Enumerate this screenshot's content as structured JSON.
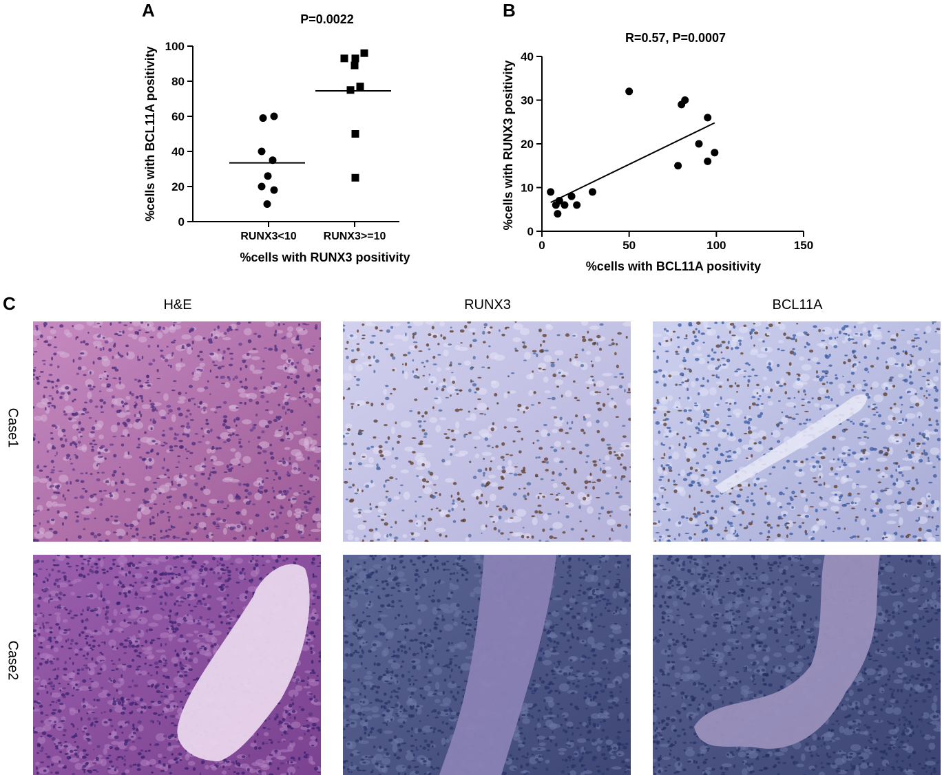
{
  "panels": {
    "a": "A",
    "b": "B",
    "c": "C"
  },
  "chart_data": [
    {
      "type": "scatter",
      "title": "P=0.0022",
      "xlabel": "%cells with RUNX3 positivity",
      "ylabel": "%cells with BCL11A positivity",
      "categories": [
        "RUNX3<10",
        "RUNX3>=10"
      ],
      "ylim": [
        0,
        100
      ],
      "yticks": [
        0,
        20,
        40,
        60,
        80,
        100
      ],
      "series": [
        {
          "category": "RUNX3<10",
          "marker": "circle",
          "values": [
            59,
            60,
            40,
            35,
            26,
            20,
            18,
            10
          ],
          "mean": 33.5
        },
        {
          "category": "RUNX3>=10",
          "marker": "square",
          "values": [
            96,
            93,
            93,
            89,
            77,
            75,
            50,
            25
          ],
          "mean": 74.5
        }
      ]
    },
    {
      "type": "scatter",
      "title": "R=0.57, P=0.0007",
      "xlabel": "%cells with BCL11A positivity",
      "ylabel": "%cells with RUNX3 positivity",
      "xlim": [
        0,
        150
      ],
      "ylim": [
        0,
        40
      ],
      "xticks": [
        0,
        50,
        100,
        150
      ],
      "yticks": [
        0,
        10,
        20,
        30,
        40
      ],
      "points": [
        {
          "x": 5,
          "y": 9
        },
        {
          "x": 8,
          "y": 6
        },
        {
          "x": 9,
          "y": 4
        },
        {
          "x": 10,
          "y": 7
        },
        {
          "x": 13,
          "y": 6
        },
        {
          "x": 17,
          "y": 8
        },
        {
          "x": 20,
          "y": 6
        },
        {
          "x": 29,
          "y": 9
        },
        {
          "x": 50,
          "y": 32
        },
        {
          "x": 78,
          "y": 15
        },
        {
          "x": 80,
          "y": 29
        },
        {
          "x": 82,
          "y": 30
        },
        {
          "x": 90,
          "y": 20
        },
        {
          "x": 95,
          "y": 26
        },
        {
          "x": 95,
          "y": 16
        },
        {
          "x": 99,
          "y": 18
        }
      ],
      "fit": {
        "x": [
          5,
          99
        ],
        "y": [
          6.6,
          24.8
        ]
      }
    }
  ],
  "micrographs": {
    "columns": [
      "H&E",
      "RUNX3",
      "BCL11A"
    ],
    "rows": [
      "Case1",
      "Case2"
    ]
  }
}
